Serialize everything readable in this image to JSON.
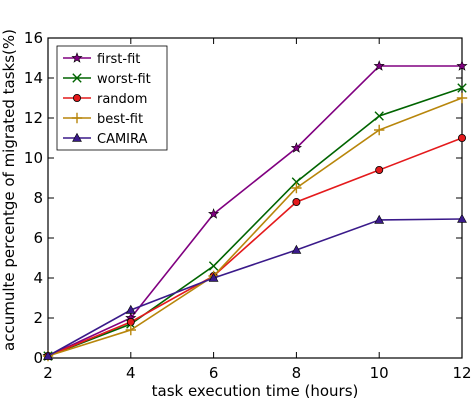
{
  "chart_data": {
    "type": "line",
    "title": "",
    "xlabel": "task execution time (hours)",
    "ylabel": "accumulte percentge of migrated tasks(%)",
    "xlim": [
      2,
      12
    ],
    "ylim": [
      0,
      16
    ],
    "xticks": [
      2,
      4,
      6,
      8,
      10,
      12
    ],
    "yticks": [
      0,
      2,
      4,
      6,
      8,
      10,
      12,
      14,
      16
    ],
    "grid": false,
    "legend_position": "top-left",
    "x": [
      2,
      4,
      6,
      8,
      10,
      12
    ],
    "series": [
      {
        "name": "first-fit",
        "color": "#800080",
        "marker": "star",
        "values": [
          0.1,
          2.0,
          7.2,
          10.5,
          14.6,
          14.6
        ]
      },
      {
        "name": "worst-fit",
        "color": "#006400",
        "marker": "x",
        "values": [
          0.1,
          1.7,
          4.6,
          8.8,
          12.1,
          13.5
        ]
      },
      {
        "name": "random",
        "color": "#e41a1c",
        "marker": "circle",
        "values": [
          0.1,
          1.8,
          4.1,
          7.8,
          9.4,
          11.0
        ]
      },
      {
        "name": "best-fit",
        "color": "#b8860b",
        "marker": "plus",
        "values": [
          0.1,
          1.4,
          4.1,
          8.5,
          11.4,
          13.0
        ]
      },
      {
        "name": "CAMIRA",
        "color": "#3a1a8a",
        "marker": "triangle",
        "values": [
          0.1,
          2.4,
          4.0,
          5.4,
          6.9,
          6.95
        ]
      }
    ]
  }
}
